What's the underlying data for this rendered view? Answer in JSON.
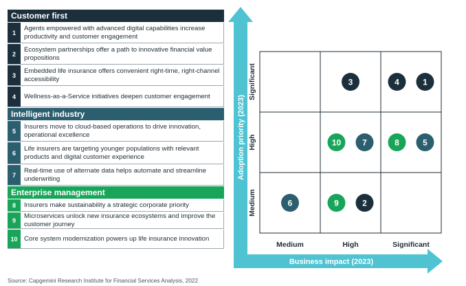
{
  "colors": {
    "customer_first": "#1c2f3c",
    "intelligent_industry": "#2b5e6f",
    "enterprise_management": "#18a55a",
    "axis_arrow": "#4fc3d2",
    "grid_line": "#1c2b33"
  },
  "sections": [
    {
      "title": "Customer first",
      "color_key": "customer_first",
      "items": [
        {
          "num": "1",
          "text": "Agents empowered with advanced digital capabilities increase productivity and customer engagement"
        },
        {
          "num": "2",
          "text": "Ecosystem partnerships offer a path to innovative financial value propositions"
        },
        {
          "num": "3",
          "text": "Embedded life insurance offers convenient right-time, right-channel accessibility"
        },
        {
          "num": "4",
          "text": "Wellness-as-a-Service initiatives deepen customer engagement"
        }
      ]
    },
    {
      "title": "Intelligent industry",
      "color_key": "intelligent_industry",
      "items": [
        {
          "num": "5",
          "text": "Insurers move to cloud-based operations to drive innovation, operational excellence"
        },
        {
          "num": "6",
          "text": "Life insurers are targeting younger populations with relevant products and digital customer experience"
        },
        {
          "num": "7",
          "text": "Real-time use of alternate data helps automate and streamline underwriting"
        }
      ]
    },
    {
      "title": "Enterprise management",
      "color_key": "enterprise_management",
      "items": [
        {
          "num": "8",
          "text": "Insurers make sustainability a strategic corporate priority"
        },
        {
          "num": "9",
          "text": "Microservices unlock new insurance ecosystems and improve the customer journey"
        },
        {
          "num": "10",
          "text": "Core system modernization powers up life insurance innovation"
        }
      ]
    }
  ],
  "source": "Source: Capgemini Research Institute for Financial Services Analysis, 2022",
  "chart_data": {
    "type": "scatter",
    "xlabel": "Business impact (2023)",
    "ylabel": "Adoption priority (2023)",
    "x_categories": [
      "Medium",
      "High",
      "Significant"
    ],
    "y_categories": [
      "Medium",
      "High",
      "Significant"
    ],
    "points": [
      {
        "label": "1",
        "x": "Significant",
        "y": "Significant",
        "group": "customer_first"
      },
      {
        "label": "2",
        "x": "High",
        "y": "Medium",
        "group": "customer_first"
      },
      {
        "label": "3",
        "x": "High",
        "y": "Significant",
        "group": "customer_first"
      },
      {
        "label": "4",
        "x": "Significant",
        "y": "Significant",
        "group": "customer_first"
      },
      {
        "label": "5",
        "x": "Significant",
        "y": "High",
        "group": "intelligent_industry"
      },
      {
        "label": "6",
        "x": "Medium",
        "y": "Medium",
        "group": "intelligent_industry"
      },
      {
        "label": "7",
        "x": "High",
        "y": "High",
        "group": "intelligent_industry"
      },
      {
        "label": "8",
        "x": "Significant",
        "y": "High",
        "group": "enterprise_management"
      },
      {
        "label": "9",
        "x": "High",
        "y": "Medium",
        "group": "enterprise_management"
      },
      {
        "label": "10",
        "x": "High",
        "y": "High",
        "group": "enterprise_management"
      }
    ]
  }
}
